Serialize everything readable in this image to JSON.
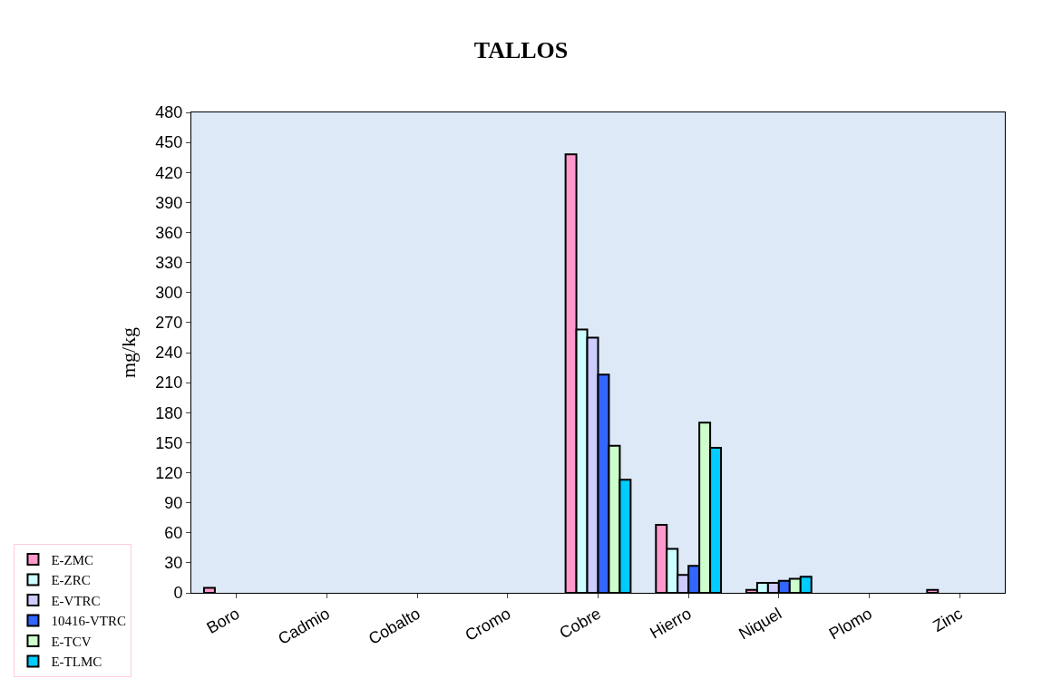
{
  "chart_data": {
    "type": "bar",
    "title": "TALLOS",
    "ylabel": "mg/kg",
    "categories": [
      "Boro",
      "Cadmio",
      "Cobalto",
      "Cromo",
      "Cobre",
      "Hierro",
      "Niquel",
      "Plomo",
      "Zinc"
    ],
    "series": [
      {
        "name": "E-ZMC",
        "color": "#ff99cc",
        "values": [
          5,
          null,
          null,
          null,
          438,
          68,
          3,
          null,
          3
        ]
      },
      {
        "name": "E-ZRC",
        "color": "#ccffff",
        "values": [
          null,
          null,
          null,
          null,
          263,
          44,
          10,
          null,
          null
        ]
      },
      {
        "name": "E-VTRC",
        "color": "#ccccff",
        "values": [
          null,
          null,
          null,
          null,
          255,
          18,
          10,
          null,
          null
        ]
      },
      {
        "name": "10416-VTRC",
        "color": "#3366ff",
        "values": [
          null,
          null,
          null,
          null,
          218,
          27,
          12,
          null,
          null
        ]
      },
      {
        "name": "E-TCV",
        "color": "#ccffcc",
        "values": [
          null,
          null,
          null,
          null,
          147,
          170,
          14,
          null,
          null
        ]
      },
      {
        "name": "E-TLMC",
        "color": "#00ccff",
        "values": [
          null,
          null,
          null,
          null,
          113,
          145,
          16,
          null,
          null
        ]
      }
    ],
    "ylim": [
      0,
      480
    ],
    "yticks": [
      0,
      30,
      60,
      90,
      120,
      150,
      180,
      210,
      240,
      270,
      300,
      330,
      360,
      390,
      420,
      450,
      480
    ],
    "grid": false,
    "legend": "bottom left"
  }
}
